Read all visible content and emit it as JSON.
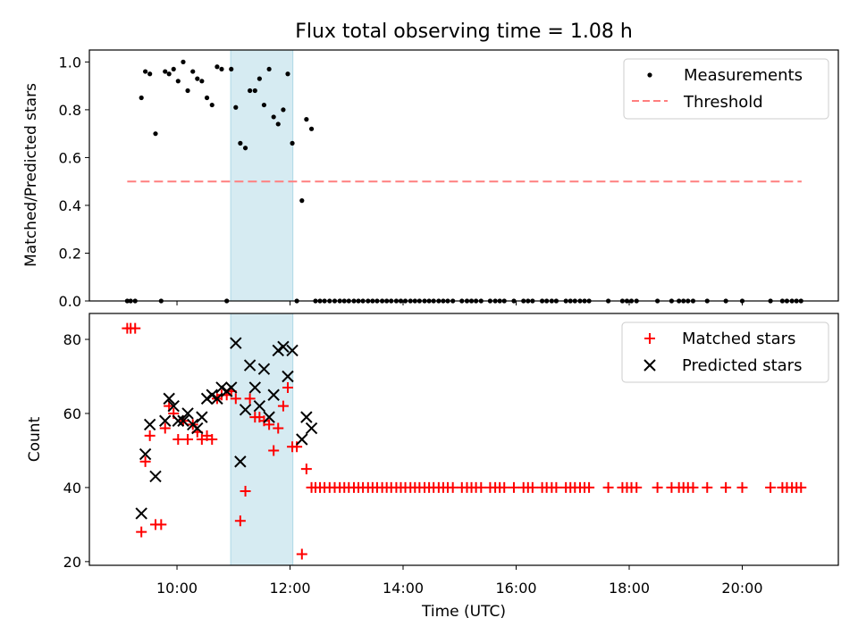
{
  "chart_data": {
    "type": "scatter",
    "title": "Flux total observing time = 1.08 h",
    "xlabel": "Time (UTC)",
    "x_unit": "hours UTC",
    "xlim": [
      8.45,
      21.7
    ],
    "x_ticks": [
      {
        "value": 10,
        "label": "10:00"
      },
      {
        "value": 12,
        "label": "12:00"
      },
      {
        "value": 14,
        "label": "14:00"
      },
      {
        "value": 16,
        "label": "16:00"
      },
      {
        "value": 18,
        "label": "18:00"
      },
      {
        "value": 20,
        "label": "20:00"
      }
    ],
    "highlight_span": {
      "start": 10.95,
      "end": 12.05,
      "color": "#add8e6"
    },
    "top": {
      "ylabel": "Matched/Predicted stars",
      "ylim": [
        0,
        1.05
      ],
      "y_ticks": [
        "0.0",
        "0.2",
        "0.4",
        "0.6",
        "0.8",
        "1.0"
      ],
      "legend": {
        "location": "upper right",
        "entries": [
          "Measurements",
          "Threshold"
        ]
      },
      "threshold": {
        "name": "Threshold",
        "value": 0.5,
        "x_range": [
          9.12,
          21.05
        ],
        "color": "#ff7f7f"
      },
      "measurements": {
        "name": "Measurements",
        "color": "#000000",
        "x": [
          9.12,
          9.18,
          9.26,
          9.37,
          9.44,
          9.52,
          9.62,
          9.72,
          9.79,
          9.86,
          9.94,
          10.02,
          10.11,
          10.19,
          10.28,
          10.36,
          10.44,
          10.53,
          10.62,
          10.71,
          10.79,
          10.88,
          10.96,
          11.04,
          11.12,
          11.21,
          11.29,
          11.38,
          11.46,
          11.54,
          11.63,
          11.71,
          11.79,
          11.88,
          11.96,
          12.04,
          12.12,
          12.21,
          12.29,
          12.38,
          12.45,
          12.53,
          12.61,
          12.7,
          12.79,
          12.88,
          12.96,
          13.04,
          13.13,
          13.21,
          13.29,
          13.38,
          13.46,
          13.54,
          13.63,
          13.71,
          13.79,
          13.88,
          13.96,
          14.04,
          14.13,
          14.21,
          14.29,
          14.38,
          14.46,
          14.54,
          14.63,
          14.71,
          14.79,
          14.88,
          15.04,
          15.13,
          15.21,
          15.29,
          15.38,
          15.54,
          15.63,
          15.71,
          15.79,
          15.96,
          16.13,
          16.21,
          16.29,
          16.46,
          16.54,
          16.63,
          16.71,
          16.88,
          16.96,
          17.04,
          17.13,
          17.21,
          17.29,
          17.63,
          17.88,
          17.96,
          18.04,
          18.13,
          18.5,
          18.75,
          18.88,
          18.96,
          19.04,
          19.13,
          19.38,
          19.71,
          20.0,
          20.5,
          20.71,
          20.79,
          20.88,
          20.96,
          21.04
        ],
        "y": [
          0,
          0,
          0,
          0.85,
          0.96,
          0.95,
          0.7,
          0,
          0.96,
          0.95,
          0.97,
          0.92,
          1.0,
          0.88,
          0.96,
          0.93,
          0.92,
          0.85,
          0.82,
          0.98,
          0.97,
          0,
          0.97,
          0.81,
          0.66,
          0.64,
          0.88,
          0.88,
          0.93,
          0.82,
          0.97,
          0.77,
          0.74,
          0.8,
          0.95,
          0.66,
          0,
          0.42,
          0.76,
          0.72,
          0,
          0,
          0,
          0,
          0,
          0,
          0,
          0,
          0,
          0,
          0,
          0,
          0,
          0,
          0,
          0,
          0,
          0,
          0,
          0,
          0,
          0,
          0,
          0,
          0,
          0,
          0,
          0,
          0,
          0,
          0,
          0,
          0,
          0,
          0,
          0,
          0,
          0,
          0,
          0,
          0,
          0,
          0,
          0,
          0,
          0,
          0,
          0,
          0,
          0,
          0,
          0,
          0,
          0,
          0,
          0,
          0,
          0,
          0,
          0,
          0,
          0,
          0,
          0,
          0,
          0,
          0,
          0,
          0,
          0,
          0,
          0,
          0
        ]
      }
    },
    "bottom": {
      "ylabel": "Count",
      "ylim": [
        19,
        87
      ],
      "y_ticks": [
        "20",
        "40",
        "60",
        "80"
      ],
      "legend": {
        "location": "upper right",
        "entries": [
          "Matched stars",
          "Predicted stars"
        ]
      },
      "matched": {
        "name": "Matched stars",
        "color": "#ff0000",
        "marker": "+",
        "x": [
          9.12,
          9.18,
          9.26,
          9.37,
          9.44,
          9.52,
          9.62,
          9.72,
          9.79,
          9.86,
          9.94,
          10.02,
          10.11,
          10.19,
          10.28,
          10.36,
          10.44,
          10.53,
          10.62,
          10.71,
          10.79,
          10.88,
          10.96,
          11.04,
          11.12,
          11.21,
          11.29,
          11.38,
          11.46,
          11.54,
          11.63,
          11.71,
          11.79,
          11.88,
          11.96,
          12.04,
          12.12,
          12.21,
          12.29,
          12.38,
          12.45,
          12.53,
          12.61,
          12.7,
          12.79,
          12.88,
          12.96,
          13.04,
          13.13,
          13.21,
          13.29,
          13.38,
          13.46,
          13.54,
          13.63,
          13.71,
          13.79,
          13.88,
          13.96,
          14.04,
          14.13,
          14.21,
          14.29,
          14.38,
          14.46,
          14.54,
          14.63,
          14.71,
          14.79,
          14.88,
          15.04,
          15.13,
          15.21,
          15.29,
          15.38,
          15.54,
          15.63,
          15.71,
          15.79,
          15.96,
          16.13,
          16.21,
          16.29,
          16.46,
          16.54,
          16.63,
          16.71,
          16.88,
          16.96,
          17.04,
          17.13,
          17.21,
          17.29,
          17.63,
          17.88,
          17.96,
          18.04,
          18.13,
          18.5,
          18.75,
          18.88,
          18.96,
          19.04,
          19.13,
          19.38,
          19.71,
          20.0,
          20.5,
          20.71,
          20.79,
          20.88,
          20.96,
          21.04
        ],
        "y": [
          83,
          83,
          83,
          28,
          47,
          54,
          30,
          30,
          56,
          62,
          60,
          53,
          58,
          53,
          57,
          55,
          53,
          54,
          53,
          64,
          65,
          65,
          66,
          64,
          31,
          39,
          64,
          59,
          59,
          58,
          57,
          50,
          56,
          62,
          67,
          51,
          51,
          22,
          45,
          40,
          40,
          40,
          40,
          40,
          40,
          40,
          40,
          40,
          40,
          40,
          40,
          40,
          40,
          40,
          40,
          40,
          40,
          40,
          40,
          40,
          40,
          40,
          40,
          40,
          40,
          40,
          40,
          40,
          40,
          40,
          40,
          40,
          40,
          40,
          40,
          40,
          40,
          40,
          40,
          40,
          40,
          40,
          40,
          40,
          40,
          40,
          40,
          40,
          40,
          40,
          40,
          40,
          40,
          40,
          40,
          40,
          40,
          40,
          40,
          40,
          40,
          40,
          40,
          40,
          40,
          40,
          40,
          40,
          40,
          40,
          40,
          40,
          40
        ]
      },
      "predicted": {
        "name": "Predicted stars",
        "color": "#000000",
        "marker": "x",
        "x": [
          9.37,
          9.44,
          9.52,
          9.62,
          9.79,
          9.86,
          9.94,
          10.02,
          10.11,
          10.19,
          10.28,
          10.36,
          10.44,
          10.53,
          10.62,
          10.71,
          10.79,
          10.88,
          10.96,
          11.04,
          11.12,
          11.21,
          11.29,
          11.38,
          11.46,
          11.54,
          11.63,
          11.71,
          11.79,
          11.88,
          11.96,
          12.04,
          12.21,
          12.29,
          12.38
        ],
        "y": [
          33,
          49,
          57,
          43,
          58,
          64,
          62,
          58,
          58,
          60,
          57,
          56,
          59,
          64,
          65,
          64,
          67,
          66,
          67,
          79,
          47,
          61,
          73,
          67,
          62,
          72,
          59,
          65,
          77,
          78,
          70,
          77,
          53,
          59,
          56
        ]
      }
    }
  }
}
